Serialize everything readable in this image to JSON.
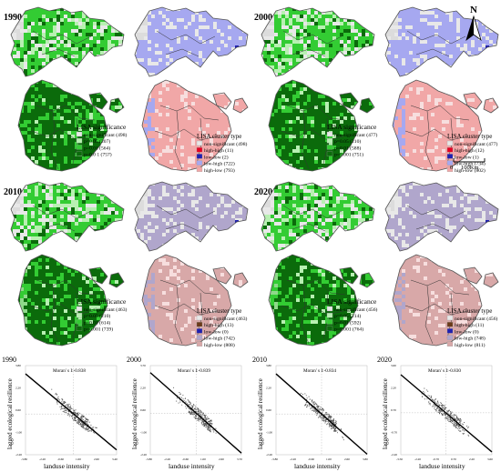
{
  "north_label": "N",
  "scale_bar": {
    "zero": "0",
    "distance": "100Km"
  },
  "colors": {
    "grey": "#d9d9d9",
    "sig05": "#b8f0b2",
    "sig01": "#33cc33",
    "sig001": "#0b6b0b",
    "hh": "#e60023",
    "ll": "#1f1fb0",
    "lh": "#a6a8f0",
    "hl": "#f1a7a7",
    "lh_b": "#b0a6cc",
    "hl_b": "#d8a8a8"
  },
  "maps": [
    {
      "year": "1990",
      "sig": {
        "title": "LISA significance",
        "items": [
          {
            "label": "non-significant (498)",
            "color": "#e8e8e8"
          },
          {
            "label": "p=0.05 (207)",
            "color": "#b8f0b2"
          },
          {
            "label": "p=0.01 (564)",
            "color": "#33cc33"
          },
          {
            "label": "p=0.0 1 (757)",
            "color": "#0b6b0b"
          }
        ]
      },
      "cluster": {
        "title": "LISA cluster type",
        "items": [
          {
            "label": "non-significant (498)",
            "color": "#e8e8e8"
          },
          {
            "label": "high-high (11)",
            "color": "#e60023"
          },
          {
            "label": "low-low (2)",
            "color": "#1f1fb0"
          },
          {
            "label": "low-high (722)",
            "color": "#a6a8f0"
          },
          {
            "label": "high-low (793)",
            "color": "#f1a7a7"
          }
        ]
      }
    },
    {
      "year": "2000",
      "sig": {
        "title": "LISA significance",
        "items": [
          {
            "label": "non-significant (477)",
            "color": "#e8e8e8"
          },
          {
            "label": "p=0.05 (210)",
            "color": "#b8f0b2"
          },
          {
            "label": "p=0.01 (588)",
            "color": "#33cc33"
          },
          {
            "label": "p=0.001 (751)",
            "color": "#0b6b0b"
          }
        ]
      },
      "cluster": {
        "title": "LISA cluster type",
        "items": [
          {
            "label": "non-significant (477)",
            "color": "#e8e8e8"
          },
          {
            "label": "high-high (12)",
            "color": "#e60023"
          },
          {
            "label": "low-low (1)",
            "color": "#1f1fb0"
          },
          {
            "label": "low-high (734)",
            "color": "#a6a8f0"
          },
          {
            "label": "high-low (802)",
            "color": "#f1a7a7"
          }
        ]
      }
    },
    {
      "year": "2010",
      "sig": {
        "title": "LISA significance",
        "items": [
          {
            "label": "non-significant (463)",
            "color": "#e8e8e8"
          },
          {
            "label": "p=0.05 (210)",
            "color": "#b8f0b2"
          },
          {
            "label": "p=0.01 (614)",
            "color": "#33cc33"
          },
          {
            "label": "p=0.001 (739)",
            "color": "#0b6b0b"
          }
        ]
      },
      "cluster": {
        "title": "LISA cluster type",
        "items": [
          {
            "label": "non-significant (463)",
            "color": "#e8e8e8"
          },
          {
            "label": "high-high (13)",
            "color": "#6b3a1a"
          },
          {
            "label": "low-low (0)",
            "color": "#1f1fb0"
          },
          {
            "label": "low-high (742)",
            "color": "#b0a6cc"
          },
          {
            "label": "high-low (808)",
            "color": "#d8a8a8"
          }
        ]
      }
    },
    {
      "year": "2020",
      "sig": {
        "title": "LISA significance",
        "items": [
          {
            "label": "non-significant (456)",
            "color": "#e8e8e8"
          },
          {
            "label": "p=0.05 (214)",
            "color": "#b8f0b2"
          },
          {
            "label": "p=0.01 (592)",
            "color": "#33cc33"
          },
          {
            "label": "p=0.001 (764)",
            "color": "#0b6b0b"
          }
        ]
      },
      "cluster": {
        "title": "LISA cluster type",
        "items": [
          {
            "label": "non-significant (456)",
            "color": "#e8e8e8"
          },
          {
            "label": "high-high (11)",
            "color": "#6b3a1a"
          },
          {
            "label": "low-low (0)",
            "color": "#1f1fb0"
          },
          {
            "label": "low-high (748)",
            "color": "#b0a6cc"
          },
          {
            "label": "high-low (811)",
            "color": "#d8a8a8"
          }
        ]
      }
    }
  ],
  "chart_data": [
    {
      "type": "scatter",
      "title": "1990",
      "annotation": "Moran' s I:-0.838",
      "xlabel": "landuse intensity",
      "ylabel": "lagged ecological resilience",
      "xlim": [
        -3.8,
        3.4
      ],
      "ylim": [
        -3.2,
        3.8
      ],
      "xticks": [
        "-3.80",
        "-2.20",
        "-0.60",
        "1.00",
        "2.60",
        "3.40"
      ],
      "yticks": [
        "3.80",
        "2.20",
        "0.60",
        "-1.00",
        "-2.20"
      ]
    },
    {
      "type": "scatter",
      "title": "2000",
      "annotation": "Moran' s I:-0.839",
      "xlabel": "landuse intensity",
      "ylabel": "lagged ecological resilience",
      "xlim": [
        -3.8,
        3.7
      ],
      "ylim": [
        -3.2,
        3.7
      ],
      "xticks": [
        "-3.80",
        "-2.20",
        "-0.60",
        "1.00",
        "2.60",
        "3.70"
      ],
      "yticks": [
        "3.70",
        "2.20",
        "0.60",
        "-1.00",
        "-2.20"
      ]
    },
    {
      "type": "scatter",
      "title": "2010",
      "annotation": "Moran' s I:-0.834",
      "xlabel": "landuse intensity",
      "ylabel": "lagged ecological resilience",
      "xlim": [
        -3.8,
        3.8
      ],
      "ylim": [
        -3.2,
        3.8
      ],
      "xticks": [
        "-3.80",
        "-2.20",
        "-0.60",
        "1.00",
        "2.60",
        "3.80"
      ],
      "yticks": [
        "3.80",
        "2.20",
        "0.60",
        "-1.00",
        "-2.20"
      ]
    },
    {
      "type": "scatter",
      "title": "2020",
      "annotation": "Moran' s I:-0.830",
      "xlabel": "landuse intensity",
      "ylabel": "lagged ecological resilience",
      "xlim": [
        -3.5,
        3.6
      ],
      "ylim": [
        -3.2,
        3.6
      ],
      "xticks": [
        "-3.50",
        "-2.20",
        "-0.70",
        "0.70",
        "2.20",
        "3.60"
      ],
      "yticks": [
        "3.60",
        "2.20",
        "0.70",
        "-0.70",
        "-2.20"
      ]
    }
  ]
}
